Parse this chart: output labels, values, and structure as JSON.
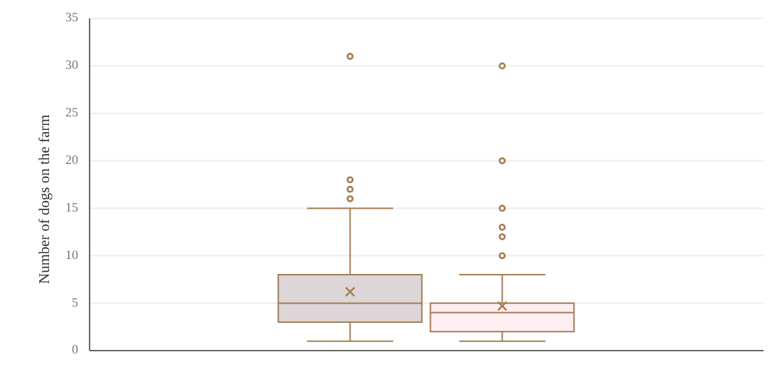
{
  "chart_data": {
    "type": "box",
    "ylabel": "Number of dogs on the farm",
    "categories": [
      null
    ],
    "series": [
      {
        "color": "#dcd6d8",
        "boxes": [
          {
            "low": 1,
            "q1": 3,
            "median": 5,
            "q3": 8,
            "high": 15,
            "mean": 6.2,
            "outliers": [
              16,
              17,
              18,
              31
            ]
          }
        ]
      },
      {
        "color": "#fdeef2",
        "boxes": [
          {
            "low": 1,
            "q1": 2,
            "median": 4,
            "q3": 5,
            "high": 8,
            "mean": 4.7,
            "outliers": [
              10,
              12,
              13,
              15,
              20,
              30
            ]
          }
        ]
      }
    ],
    "ylim": [
      0,
      35
    ],
    "yticks": [
      0,
      5,
      10,
      15,
      20,
      25,
      30,
      35
    ],
    "grid": "y",
    "legend": false
  }
}
